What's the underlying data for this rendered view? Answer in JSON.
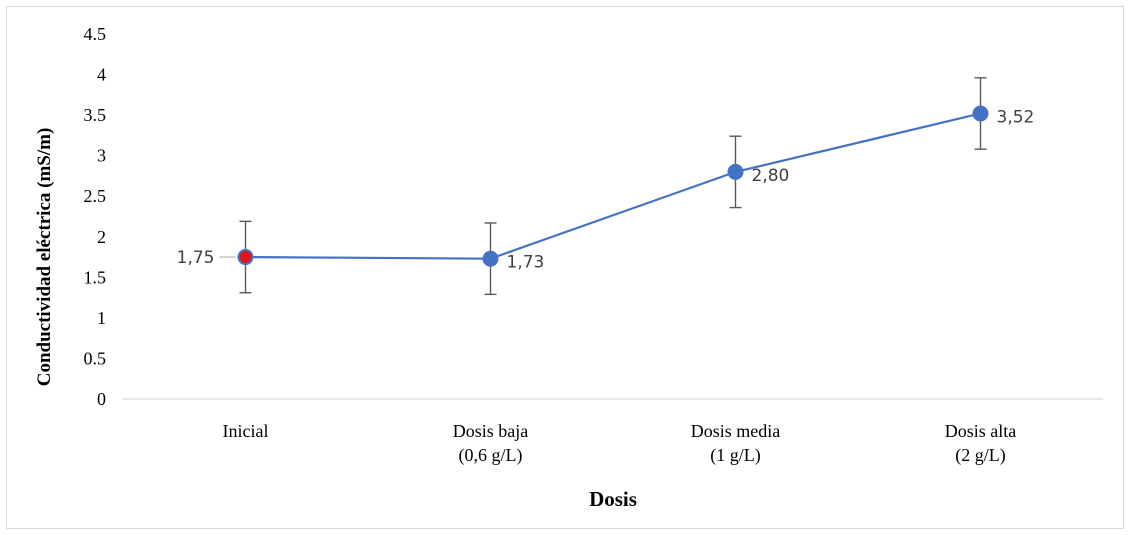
{
  "chart_data": {
    "type": "line",
    "categories": [
      [
        "Inicial"
      ],
      [
        "Dosis baja",
        "(0,6 g/L)"
      ],
      [
        "Dosis media",
        "(1 g/L)"
      ],
      [
        "Dosis alta",
        "(2 g/L)"
      ]
    ],
    "series": [
      {
        "values": [
          1.75,
          1.73,
          2.8,
          3.52
        ],
        "data_labels": [
          "1,75",
          "1,73",
          "2,80",
          "3,52"
        ],
        "error_plus": [
          0.44,
          0.44,
          0.44,
          0.44
        ],
        "error_minus": [
          0.44,
          0.44,
          0.44,
          0.44
        ],
        "color": "#4472c4",
        "first_marker_color": "#e0141e"
      }
    ],
    "ylim": [
      0,
      4.5
    ],
    "yticks": [
      "0",
      "0.5",
      "1",
      "1.5",
      "2",
      "2.5",
      "3",
      "3.5",
      "4",
      "4.5"
    ],
    "xlabel": "Dosis",
    "ylabel": "Conductividad eléctrica (mS/m)",
    "grid": false,
    "legend": "none",
    "axis_color": "#d9d9d9",
    "error_bar_color": "#595959"
  }
}
